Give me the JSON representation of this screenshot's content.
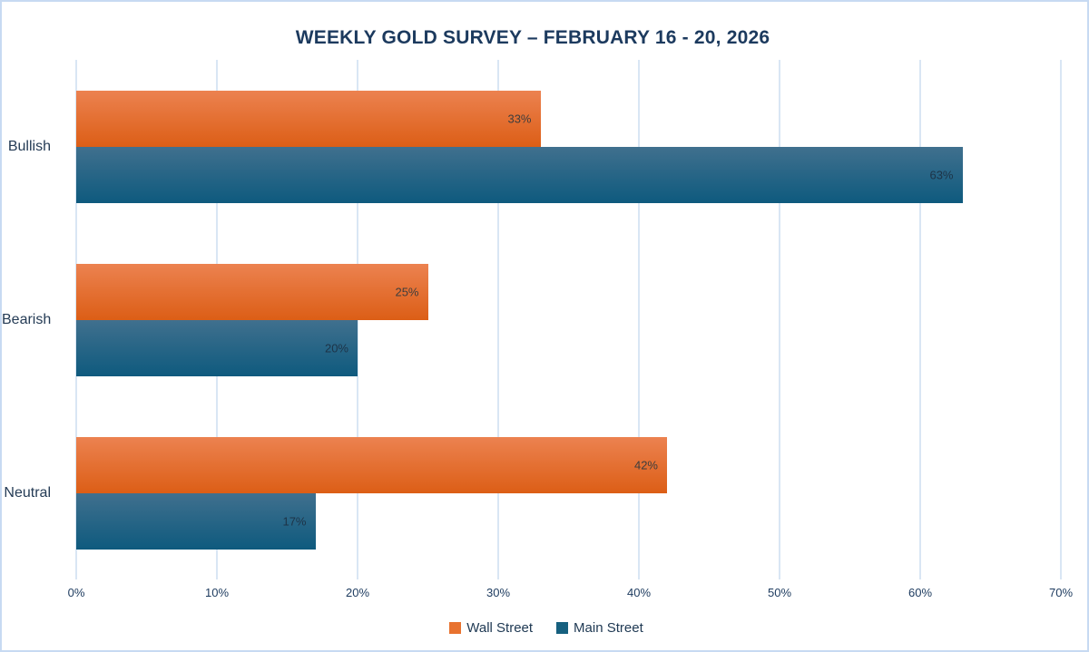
{
  "chart_data": {
    "type": "bar",
    "orientation": "horizontal",
    "title": "WEEKLY GOLD SURVEY – FEBRUARY 16 - 20, 2026",
    "categories": [
      "Bullish",
      "Bearish",
      "Neutral"
    ],
    "series": [
      {
        "name": "Wall Street",
        "values": [
          33,
          25,
          42
        ],
        "color_top": "#ec8250",
        "color_bottom": "#dc5e16",
        "legend_color": "#e8722f",
        "label_color": "#3d3d3d"
      },
      {
        "name": "Main Street",
        "values": [
          63,
          20,
          17
        ],
        "color_top": "#40708e",
        "color_bottom": "#0e5a7e",
        "legend_color": "#16607f",
        "label_color": "#1d3347"
      }
    ],
    "value_suffix": "%",
    "xlim": [
      0,
      70
    ],
    "x_ticks": [
      "0%",
      "10%",
      "20%",
      "30%",
      "40%",
      "50%",
      "60%",
      "70%"
    ],
    "grid": true,
    "legend_position": "bottom",
    "title_color": "#1c3a5e",
    "gridline_color": "#d9e6f4",
    "frame_border_color": "#c7daf2"
  }
}
